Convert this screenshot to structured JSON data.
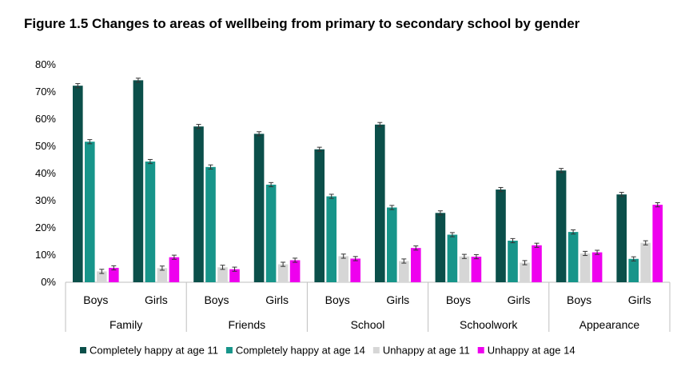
{
  "chart_data": {
    "type": "bar",
    "title": "Figure 1.5 Changes to areas of wellbeing from primary to secondary school by gender",
    "ylim": [
      0,
      80
    ],
    "yticks": [
      "0%",
      "10%",
      "20%",
      "30%",
      "40%",
      "50%",
      "60%",
      "70%",
      "80%"
    ],
    "groups": [
      {
        "name": "Family",
        "subs": [
          "Boys",
          "Girls"
        ]
      },
      {
        "name": "Friends",
        "subs": [
          "Boys",
          "Girls"
        ]
      },
      {
        "name": "School",
        "subs": [
          "Boys",
          "Girls"
        ]
      },
      {
        "name": "Schoolwork",
        "subs": [
          "Boys",
          "Girls"
        ]
      },
      {
        "name": "Appearance",
        "subs": [
          "Boys",
          "Girls"
        ]
      }
    ],
    "series": [
      {
        "name": "Completely happy at age 11",
        "color": "#0b4f4a",
        "values": [
          72.3,
          74.3,
          57.3,
          54.6,
          48.9,
          58.0,
          25.5,
          34.1,
          41.1,
          32.3
        ]
      },
      {
        "name": "Completely happy at age 14",
        "color": "#17958a",
        "values": [
          51.7,
          44.4,
          42.4,
          35.9,
          31.6,
          27.5,
          17.5,
          15.3,
          18.5,
          8.6
        ]
      },
      {
        "name": "Unhappy at age 11",
        "color": "#d6d6d6",
        "values": [
          4.0,
          5.2,
          5.5,
          6.6,
          9.6,
          7.8,
          9.5,
          7.2,
          10.6,
          14.5
        ]
      },
      {
        "name": "Unhappy at age 14",
        "color": "#ee00ee",
        "values": [
          5.3,
          9.2,
          4.8,
          8.1,
          8.7,
          12.6,
          9.4,
          13.6,
          11.0,
          28.5
        ]
      }
    ]
  }
}
